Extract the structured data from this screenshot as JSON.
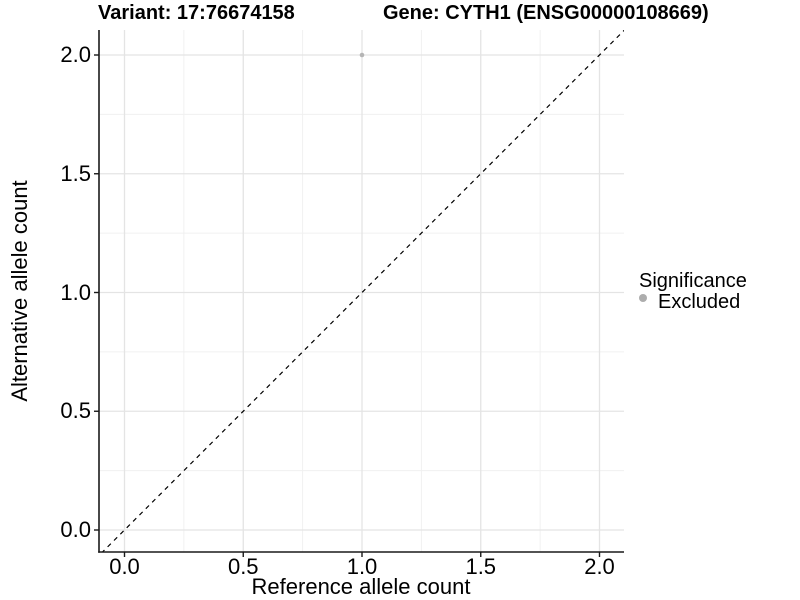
{
  "chart_data": {
    "type": "scatter",
    "title_left": "Variant: 17:76674158",
    "title_right": "Gene: CYTH1 (ENSG00000108669)",
    "xlabel": "Reference allele count",
    "ylabel": "Alternative allele count",
    "xlim": [
      -0.105,
      2.105
    ],
    "ylim": [
      -0.105,
      2.105
    ],
    "x_tick_values": [
      0.0,
      0.5,
      1.0,
      1.5,
      2.0
    ],
    "y_tick_values": [
      0.0,
      0.5,
      1.0,
      1.5,
      2.0
    ],
    "x_tick_labels": [
      "0.0",
      "0.5",
      "1.0",
      "1.5",
      "2.0"
    ],
    "y_tick_labels": [
      "0.0",
      "0.5",
      "1.0",
      "1.5",
      "2.0"
    ],
    "x_minor_ticks": [
      0.25,
      0.75,
      1.25,
      1.75
    ],
    "y_minor_ticks": [
      0.25,
      0.75,
      1.25,
      1.75
    ],
    "grid": "major+minor",
    "legend_position": "right",
    "identity_line": {
      "equation": "y = x",
      "style": "dashed",
      "color": "#000000"
    },
    "series": [
      {
        "name": "Excluded",
        "color": "#b5b5b5",
        "points": [
          {
            "x": 1.0,
            "y": 2.0
          }
        ]
      }
    ],
    "legend": {
      "title": "Significance",
      "items": [
        {
          "label": "Excluded",
          "marker": "circle-icon",
          "color": "#adadad"
        }
      ]
    }
  },
  "colors": {
    "background": "#ffffff",
    "grid_major": "#e4e4e4",
    "grid_minor": "#f0f0f0",
    "axis_line": "#1a1a1a",
    "tick_mark": "#1a1a1a",
    "text": "#000000",
    "point": "#b5b5b5"
  }
}
